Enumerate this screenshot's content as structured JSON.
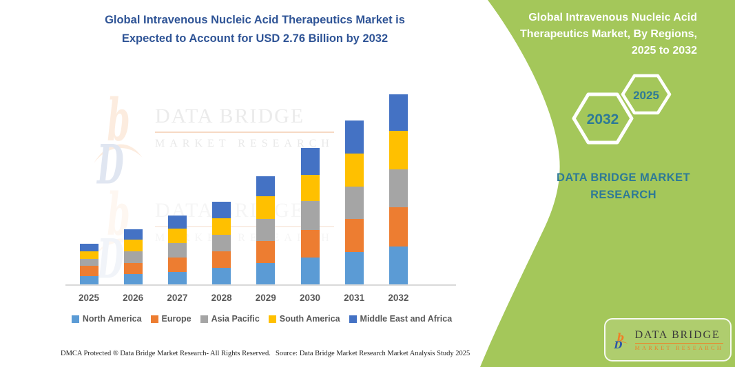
{
  "page": {
    "background": "#ffffff"
  },
  "chart_title": {
    "line1": "Global Intravenous Nucleic Acid Therapeutics Market is",
    "line2": "Expected to Account for USD 2.76 Billion by 2032",
    "color": "#2F5496"
  },
  "chart_data": {
    "type": "bar",
    "stacked": true,
    "unit": "USD Billion",
    "categories": [
      "2025",
      "2026",
      "2027",
      "2028",
      "2029",
      "2030",
      "2031",
      "2032"
    ],
    "series": [
      {
        "name": "North America",
        "color": "#5B9BD5",
        "values": [
          0.12,
          0.15,
          0.18,
          0.24,
          0.31,
          0.39,
          0.47,
          0.55
        ]
      },
      {
        "name": "Europe",
        "color": "#ED7D31",
        "values": [
          0.15,
          0.16,
          0.21,
          0.24,
          0.32,
          0.4,
          0.48,
          0.57
        ]
      },
      {
        "name": "Asia Pacific",
        "color": "#A5A5A5",
        "values": [
          0.1,
          0.17,
          0.21,
          0.24,
          0.32,
          0.42,
          0.47,
          0.55
        ]
      },
      {
        "name": "South America",
        "color": "#FFC000",
        "values": [
          0.11,
          0.17,
          0.21,
          0.24,
          0.33,
          0.38,
          0.48,
          0.56
        ]
      },
      {
        "name": "Middle East and Africa",
        "color": "#4472C4",
        "values": [
          0.11,
          0.15,
          0.19,
          0.24,
          0.29,
          0.39,
          0.48,
          0.53
        ]
      }
    ],
    "totals_estimated": [
      0.59,
      0.8,
      1.0,
      1.2,
      1.57,
      1.98,
      2.38,
      2.76
    ],
    "highlight_value": "USD 2.76 Billion by 2032",
    "legend_position": "bottom",
    "gridlines": false,
    "y_axis_visible": false,
    "xlabel": "",
    "ylabel": ""
  },
  "watermark": {
    "brand_line1": "DATA BRIDGE",
    "brand_line2": "MARKET RESEARCH"
  },
  "side_panel": {
    "bg_color": "#A4C75A",
    "title": {
      "line1": "Global Intravenous Nucleic Acid",
      "line2": "Therapeutics Market, By Regions,",
      "line3": "2025 to 2032"
    },
    "hexagons": [
      {
        "label": "2032"
      },
      {
        "label": "2025"
      }
    ],
    "brand_text": {
      "line1": "DATA BRIDGE MARKET",
      "line2": "RESEARCH"
    },
    "text_color": "#2E7A96"
  },
  "logo_badge": {
    "brand_line1": "DATA BRIDGE",
    "brand_line2": "MARKET RESEARCH"
  },
  "footer": {
    "left": "DMCA Protected ® Data Bridge Market Research-  All Rights Reserved.",
    "right": "Source: Data Bridge Market Research  Market Analysis Study 2025"
  }
}
